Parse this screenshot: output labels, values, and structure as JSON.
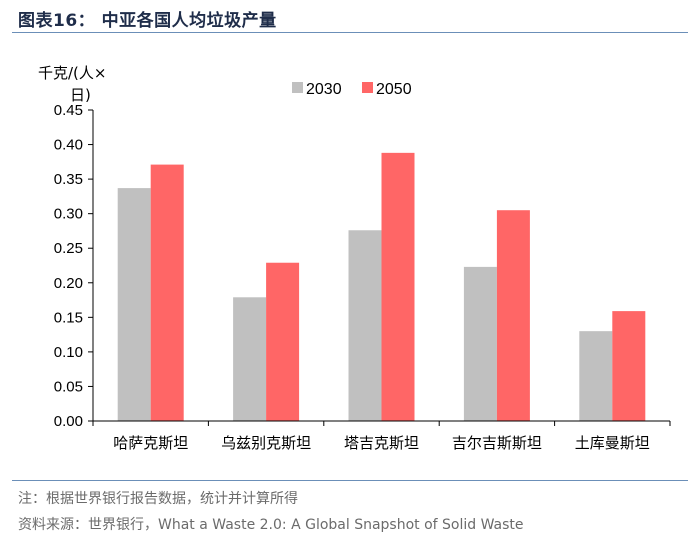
{
  "header": {
    "title": "图表16：  中亚各国人均垃圾产量"
  },
  "footer": {
    "note": "注：根据世界银行报告数据，统计并计算所得",
    "source": "资料来源：世界银行，What a Waste 2.0: A Global Snapshot of Solid Waste"
  },
  "colors": {
    "series_2030": "#c0c0c0",
    "series_2050": "#ff6666",
    "axis": "#000000",
    "rule": "#6b8fb8"
  },
  "chart_data": {
    "type": "bar",
    "title": "中亚各国人均垃圾产量",
    "ylabel_line1": "千克/(人×",
    "ylabel_line2": "日)",
    "xlabel": "",
    "categories": [
      "哈萨克斯坦",
      "乌兹别克斯坦",
      "塔吉克斯坦",
      "吉尔吉斯斯坦",
      "土库曼斯坦"
    ],
    "series": [
      {
        "name": "2030",
        "values": [
          0.337,
          0.179,
          0.276,
          0.223,
          0.13
        ]
      },
      {
        "name": "2050",
        "values": [
          0.371,
          0.229,
          0.388,
          0.305,
          0.159
        ]
      }
    ],
    "ylim": [
      0,
      0.45
    ],
    "yticks": [
      0.0,
      0.05,
      0.1,
      0.15,
      0.2,
      0.25,
      0.3,
      0.35,
      0.4,
      0.45
    ],
    "ytick_labels": [
      "0.00",
      "0.05",
      "0.10",
      "0.15",
      "0.20",
      "0.25",
      "0.30",
      "0.35",
      "0.40",
      "0.45"
    ],
    "legend_position": "top-center",
    "grid": false
  }
}
